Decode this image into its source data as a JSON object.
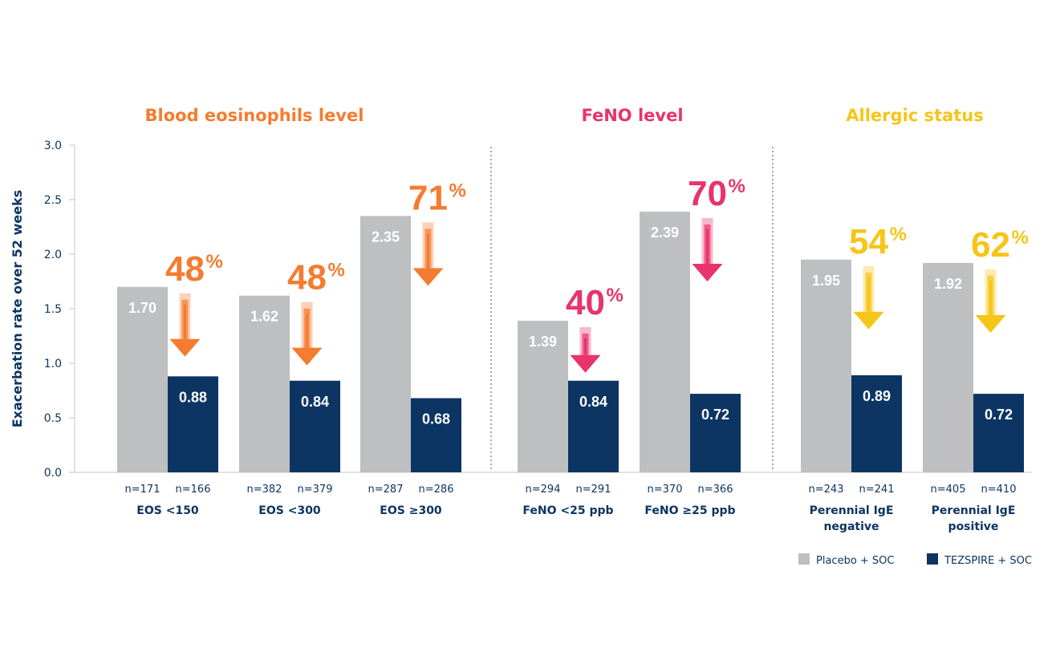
{
  "chart_data": {
    "type": "bar",
    "ylabel": "Exacerbation rate over 52 weeks",
    "ylim": [
      0,
      3.0
    ],
    "yticks": [
      "0.0",
      "0.5",
      "1.0",
      "1.5",
      "2.0",
      "2.5",
      "3.0"
    ],
    "grid": false,
    "groups": [
      {
        "title": "Blood eosinophils level",
        "color": "#f47c30",
        "categories": [
          {
            "label": [
              "EOS <150"
            ],
            "placebo": 1.7,
            "placebo_label": "1.70",
            "placebo_n": "n=171",
            "tezspire": 0.88,
            "tezspire_label": "0.88",
            "tezspire_n": "n=166",
            "reduction": "48",
            "reduction_unit": "%"
          },
          {
            "label": [
              "EOS <300"
            ],
            "placebo": 1.62,
            "placebo_label": "1.62",
            "placebo_n": "n=382",
            "tezspire": 0.84,
            "tezspire_label": "0.84",
            "tezspire_n": "n=379",
            "reduction": "48",
            "reduction_unit": "%"
          },
          {
            "label": [
              "EOS ≥300"
            ],
            "placebo": 2.35,
            "placebo_label": "2.35",
            "placebo_n": "n=287",
            "tezspire": 0.68,
            "tezspire_label": "0.68",
            "tezspire_n": "n=286",
            "reduction": "71",
            "reduction_unit": "%"
          }
        ]
      },
      {
        "title": "FeNO level",
        "color": "#e8336c",
        "categories": [
          {
            "label": [
              "FeNO <25 ppb"
            ],
            "placebo": 1.39,
            "placebo_label": "1.39",
            "placebo_n": "n=294",
            "tezspire": 0.84,
            "tezspire_label": "0.84",
            "tezspire_n": "n=291",
            "reduction": "40",
            "reduction_unit": "%"
          },
          {
            "label": [
              "FeNO ≥25 ppb"
            ],
            "placebo": 2.39,
            "placebo_label": "2.39",
            "placebo_n": "n=370",
            "tezspire": 0.72,
            "tezspire_label": "0.72",
            "tezspire_n": "n=366",
            "reduction": "70",
            "reduction_unit": "%"
          }
        ]
      },
      {
        "title": "Allergic status",
        "color": "#f5c518",
        "categories": [
          {
            "label": [
              "Perennial IgE",
              "negative"
            ],
            "placebo": 1.95,
            "placebo_label": "1.95",
            "placebo_n": "n=243",
            "tezspire": 0.89,
            "tezspire_label": "0.89",
            "tezspire_n": "n=241",
            "reduction": "54",
            "reduction_unit": "%"
          },
          {
            "label": [
              "Perennial IgE",
              "positive"
            ],
            "placebo": 1.92,
            "placebo_label": "1.92",
            "placebo_n": "n=405",
            "tezspire": 0.72,
            "tezspire_label": "0.72",
            "tezspire_n": "n=410",
            "reduction": "62",
            "reduction_unit": "%"
          }
        ]
      }
    ],
    "series": [
      {
        "name": "Placebo + SOC",
        "color": "#bdbfc1"
      },
      {
        "name": "TEZSPIRE + SOC",
        "color": "#0d3563"
      }
    ],
    "legend": "bottom-right"
  }
}
